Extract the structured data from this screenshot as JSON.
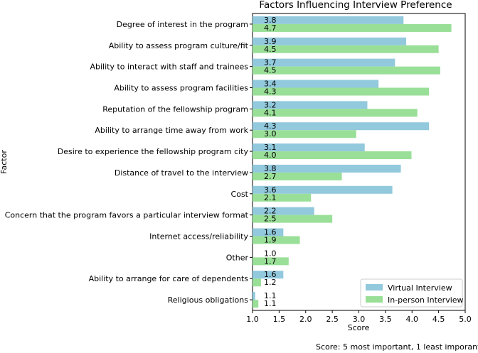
{
  "chart_data": {
    "type": "bar",
    "orientation": "horizontal",
    "title": "Factors Influencing Interview Preference",
    "xlabel": "Score",
    "ylabel": "Factor",
    "xlim": [
      1.0,
      5.0
    ],
    "xticks": [
      "1.0",
      "1.5",
      "2.0",
      "2.5",
      "3.0",
      "3.5",
      "4.0",
      "4.5",
      "5.0"
    ],
    "categories": [
      "Degree of interest in the program",
      "Ability to assess program culture/fit",
      "Ability to interact with staff and trainees",
      "Ability to assess program facilities",
      "Reputation of the fellowship program",
      "Ability to arrange time away from work",
      "Desire to experience the fellowship program city",
      "Distance of travel to the interview",
      "Cost",
      "Concern that the program favors a particular interview format",
      "Internet access/reliability",
      "Other",
      "Ability to arrange for care of dependents",
      "Religious obligations"
    ],
    "series": [
      {
        "name": "Virtual Interview",
        "color": "#92c9dd",
        "values": [
          3.84,
          3.89,
          3.68,
          3.37,
          3.16,
          4.32,
          3.11,
          3.79,
          3.63,
          2.16,
          1.58,
          1.0,
          1.58,
          1.05
        ],
        "labels": [
          "3.8",
          "3.9",
          "3.7",
          "3.4",
          "3.2",
          "4.3",
          "3.1",
          "3.8",
          "3.6",
          "2.2",
          "1.6",
          "1.0",
          "1.6",
          "1.1"
        ]
      },
      {
        "name": "In-person Interview",
        "color": "#9adf98",
        "values": [
          4.74,
          4.5,
          4.53,
          4.32,
          4.1,
          2.95,
          3.99,
          2.68,
          2.1,
          2.5,
          1.89,
          1.68,
          1.16,
          1.11
        ],
        "labels": [
          "4.7",
          "4.5",
          "4.5",
          "4.3",
          "4.1",
          "3.0",
          "4.0",
          "2.7",
          "2.1",
          "2.5",
          "1.9",
          "1.7",
          "1.2",
          "1.1"
        ]
      }
    ],
    "legend_position": "bottom-right",
    "grid": false
  },
  "footnote": "Score:  5 most important, 1 least imporant"
}
